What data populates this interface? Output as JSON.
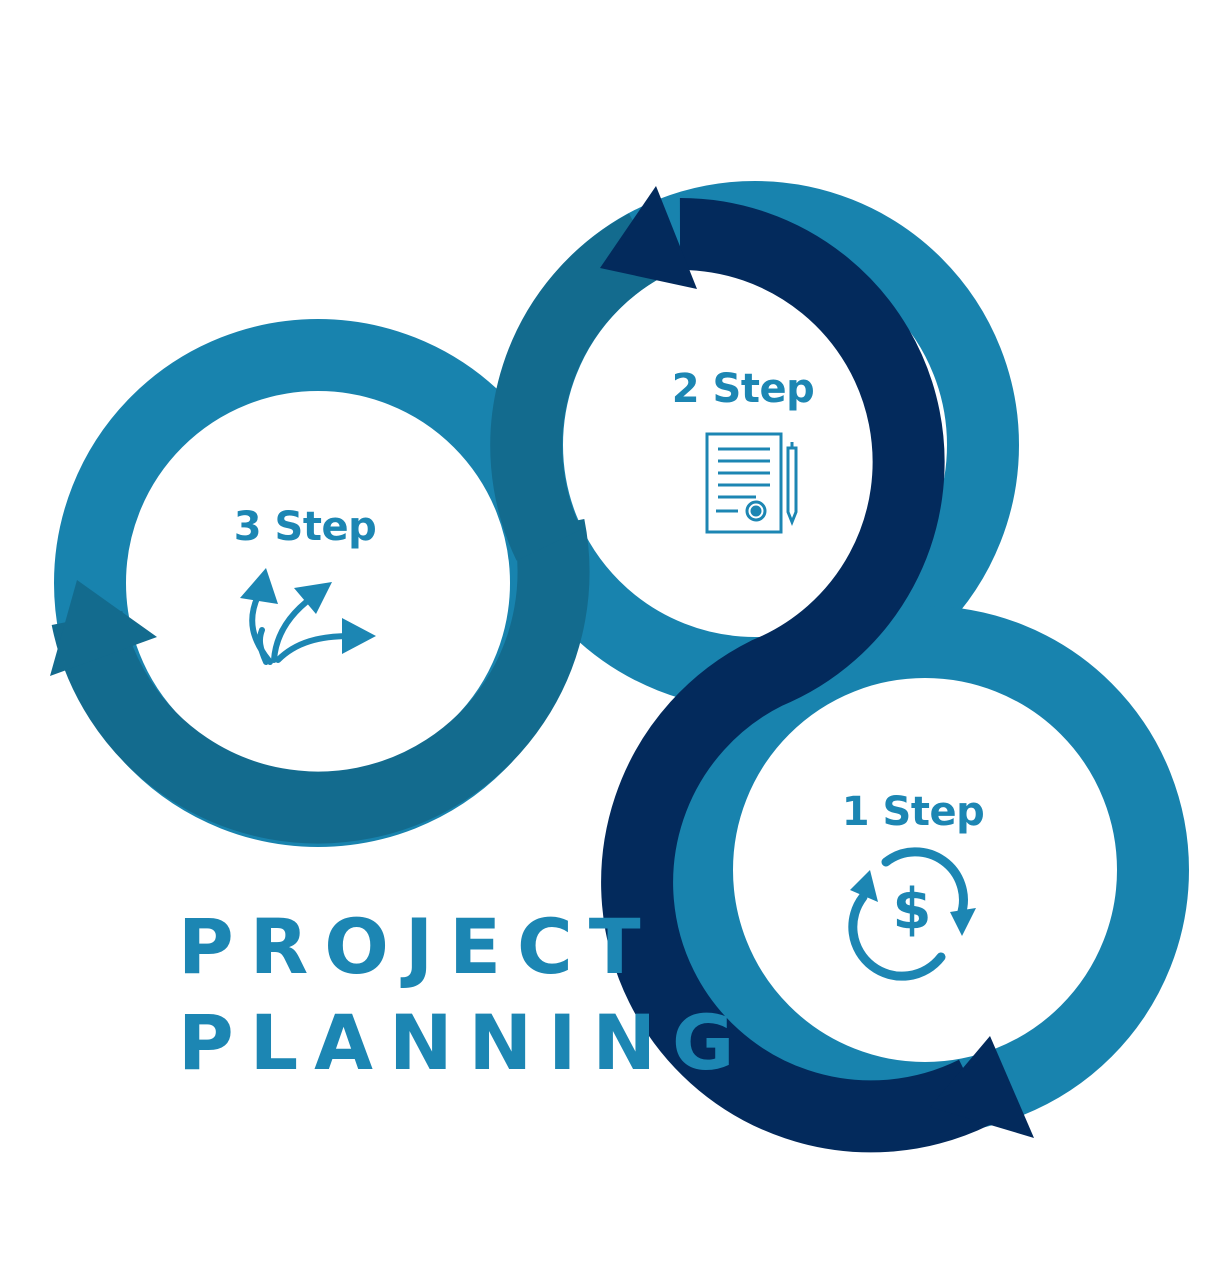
{
  "title": {
    "line1": "PROJECT",
    "line2": "PLANNING"
  },
  "steps": [
    {
      "label": "1 Step",
      "icon": "dollar-cycle-icon"
    },
    {
      "label": "2 Step",
      "icon": "contract-document-icon"
    },
    {
      "label": "3 Step",
      "icon": "branching-arrows-icon"
    }
  ],
  "colors": {
    "light_blue": "#1883AE",
    "mid_blue": "#136B8E",
    "navy": "#032A5C",
    "text_blue": "#1C86B3",
    "background": "#FFFFFF"
  }
}
